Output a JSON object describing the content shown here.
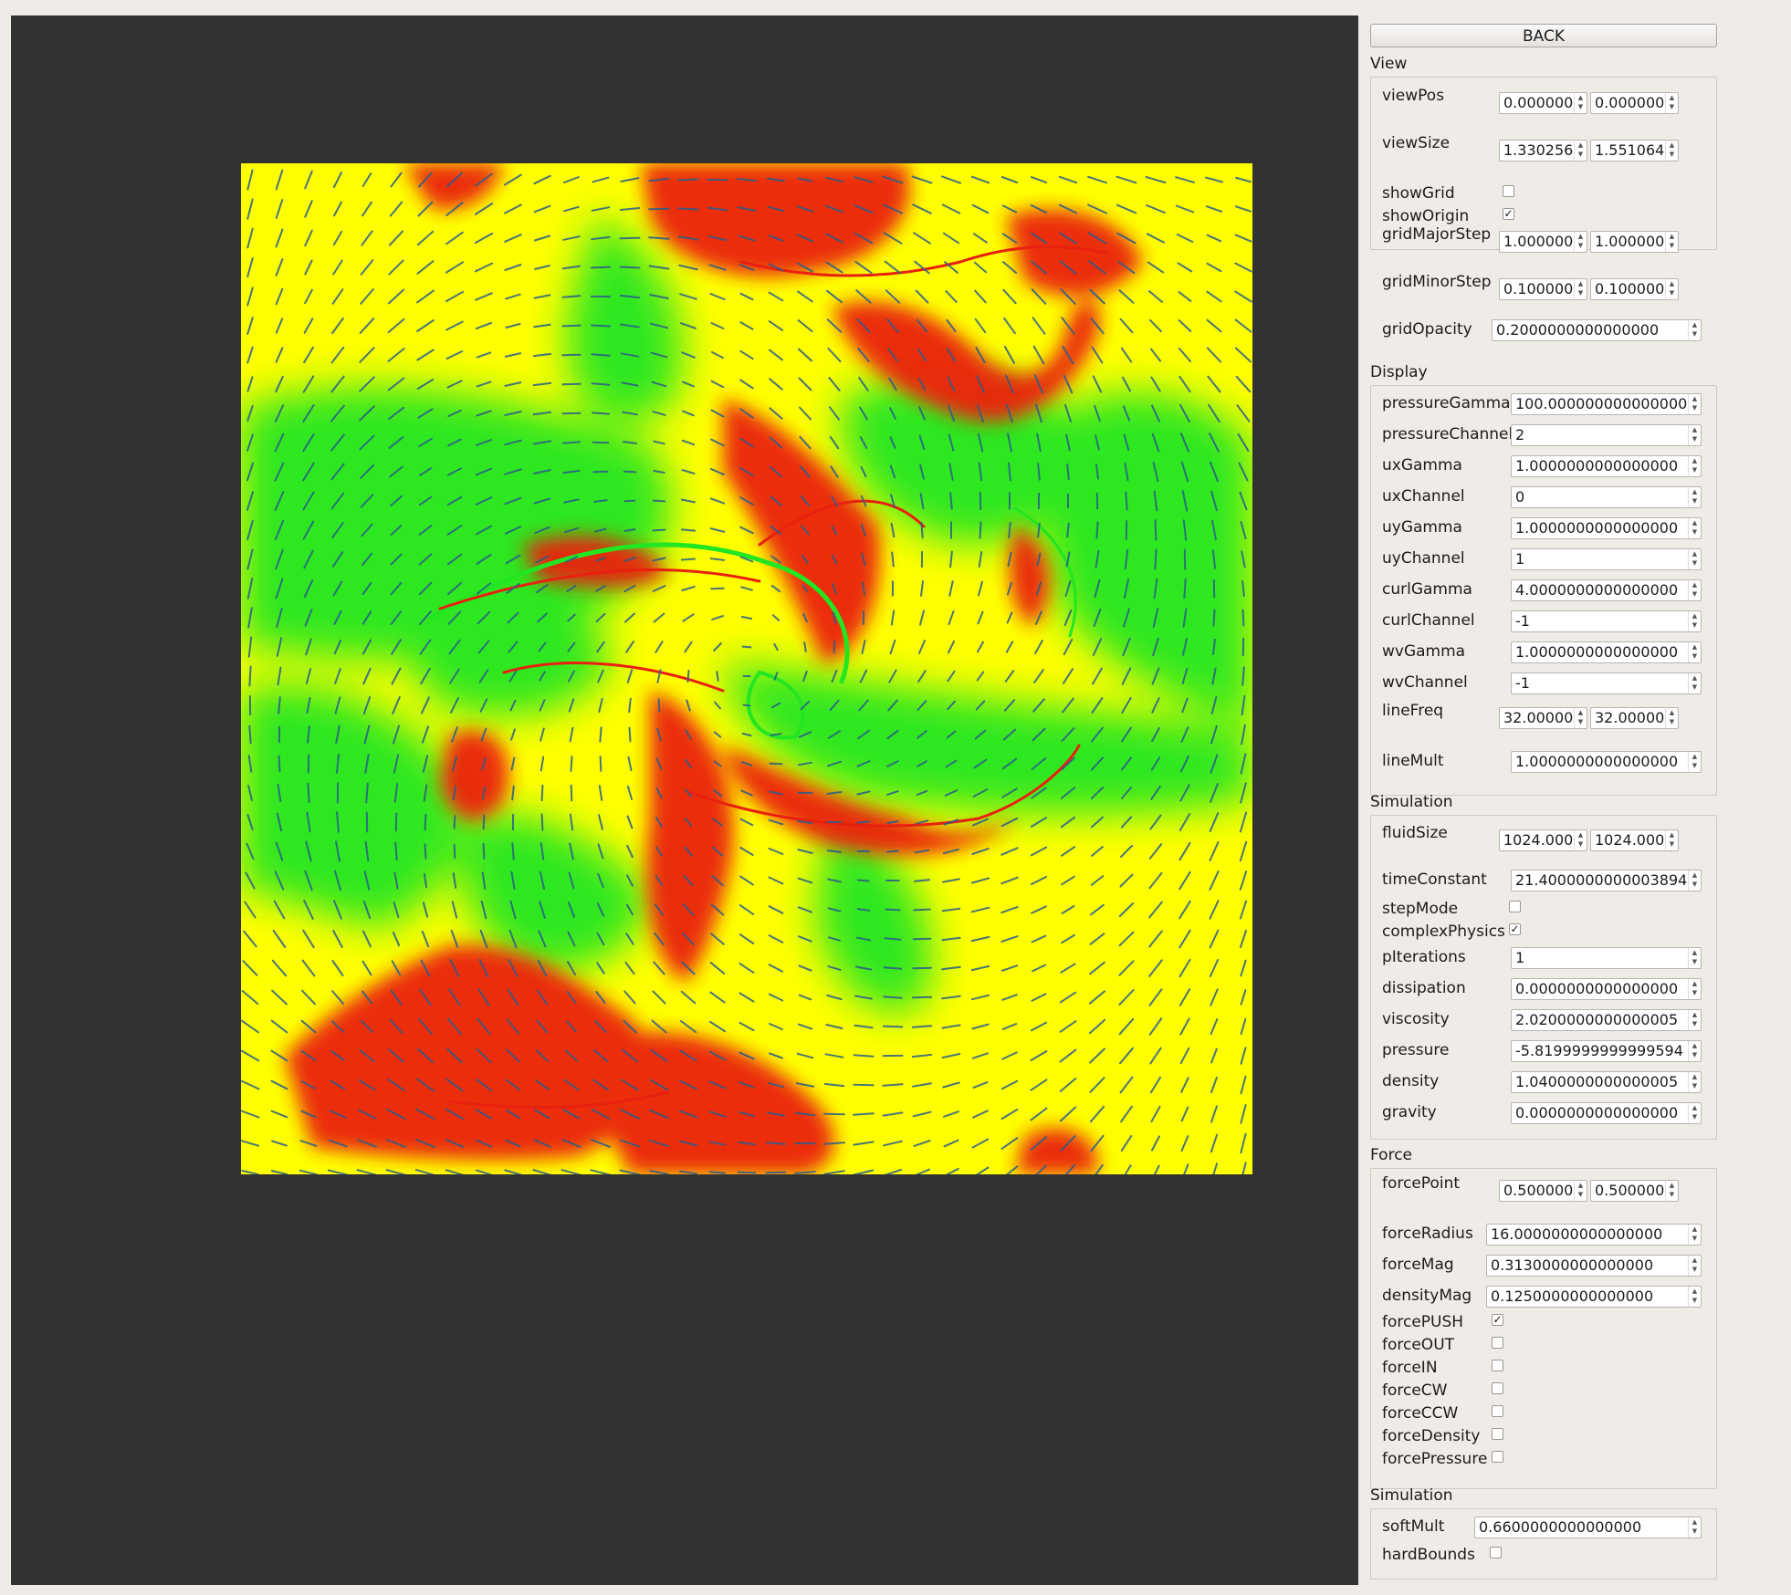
{
  "back_label": "BACK",
  "groups": [
    {
      "title": "View",
      "rows": [
        {
          "label": "viewPos",
          "type": "spin2",
          "v1": "0.000000",
          "v2": "0.000000"
        },
        {
          "label": "viewSize",
          "type": "spin2",
          "v1": "1.330256",
          "v2": "1.551064"
        },
        {
          "label": "showGrid",
          "type": "check",
          "checked": false
        },
        {
          "label": "showOrigin",
          "type": "check",
          "checked": true
        },
        {
          "label": "gridMajorStep",
          "type": "spin2",
          "v1": "1.000000",
          "v2": "1.000000"
        },
        {
          "label": "gridMinorStep",
          "type": "spin2",
          "v1": "0.100000",
          "v2": "0.100000"
        },
        {
          "label": "gridOpacity",
          "type": "spin",
          "value": "0.2000000000000000"
        }
      ]
    },
    {
      "title": "Display",
      "rows": [
        {
          "label": "pressureGamma",
          "type": "spin",
          "value": "100.0000000000000000"
        },
        {
          "label": "pressureChannel",
          "type": "spin",
          "value": "2"
        },
        {
          "label": "uxGamma",
          "type": "spin",
          "value": "1.0000000000000000"
        },
        {
          "label": "uxChannel",
          "type": "spin",
          "value": "0"
        },
        {
          "label": "uyGamma",
          "type": "spin",
          "value": "1.0000000000000000"
        },
        {
          "label": "uyChannel",
          "type": "spin",
          "value": "1"
        },
        {
          "label": "curlGamma",
          "type": "spin",
          "value": "4.0000000000000000"
        },
        {
          "label": "curlChannel",
          "type": "spin",
          "value": "-1"
        },
        {
          "label": "wvGamma",
          "type": "spin",
          "value": "1.0000000000000000"
        },
        {
          "label": "wvChannel",
          "type": "spin",
          "value": "-1"
        },
        {
          "label": "lineFreq",
          "type": "spin2",
          "v1": "32.000000",
          "v2": "32.000000"
        },
        {
          "label": "lineMult",
          "type": "spin",
          "value": "1.0000000000000000"
        }
      ]
    },
    {
      "title": "Simulation",
      "rows": [
        {
          "label": "fluidSize",
          "type": "spin2",
          "v1": "1024.000000",
          "v2": "1024.000000"
        },
        {
          "label": "timeConstant",
          "type": "spin",
          "value": "21.4000000000003894"
        },
        {
          "label": "stepMode",
          "type": "check",
          "checked": false
        },
        {
          "label": "complexPhysics",
          "type": "check",
          "checked": true
        },
        {
          "label": "pIterations",
          "type": "spin",
          "value": "1"
        },
        {
          "label": "dissipation",
          "type": "spin",
          "value": "0.0000000000000000"
        },
        {
          "label": "viscosity",
          "type": "spin",
          "value": "2.0200000000000005"
        },
        {
          "label": "pressure",
          "type": "spin",
          "value": "-5.8199999999999594"
        },
        {
          "label": "density",
          "type": "spin",
          "value": "1.0400000000000005"
        },
        {
          "label": "gravity",
          "type": "spin",
          "value": "0.0000000000000000"
        }
      ]
    },
    {
      "title": "Force",
      "rows": [
        {
          "label": "forcePoint",
          "type": "spin2",
          "v1": "0.500000",
          "v2": "0.500000"
        },
        {
          "label": "forceRadius",
          "type": "spin",
          "value": "16.0000000000000000"
        },
        {
          "label": "forceMag",
          "type": "spin",
          "value": "0.3130000000000000"
        },
        {
          "label": "densityMag",
          "type": "spin",
          "value": "0.1250000000000000"
        },
        {
          "label": "forcePUSH",
          "type": "check",
          "checked": true
        },
        {
          "label": "forceOUT",
          "type": "check",
          "checked": false
        },
        {
          "label": "forceIN",
          "type": "check",
          "checked": false
        },
        {
          "label": "forceCW",
          "type": "check",
          "checked": false
        },
        {
          "label": "forceCCW",
          "type": "check",
          "checked": false
        },
        {
          "label": "forceDensity",
          "type": "check",
          "checked": false
        },
        {
          "label": "forcePressure",
          "type": "check",
          "checked": false
        }
      ]
    },
    {
      "title": "Simulation",
      "rows": [
        {
          "label": "softMult",
          "type": "spin",
          "value": "0.6600000000000000"
        },
        {
          "label": "hardBounds",
          "type": "check",
          "checked": false
        }
      ]
    }
  ],
  "colors": {
    "viewport_bg": "#323232",
    "field_yellow": "#ffff00",
    "field_green": "#20e020",
    "field_red": "#e8200c",
    "vector_lines": "#2a5d8a"
  }
}
